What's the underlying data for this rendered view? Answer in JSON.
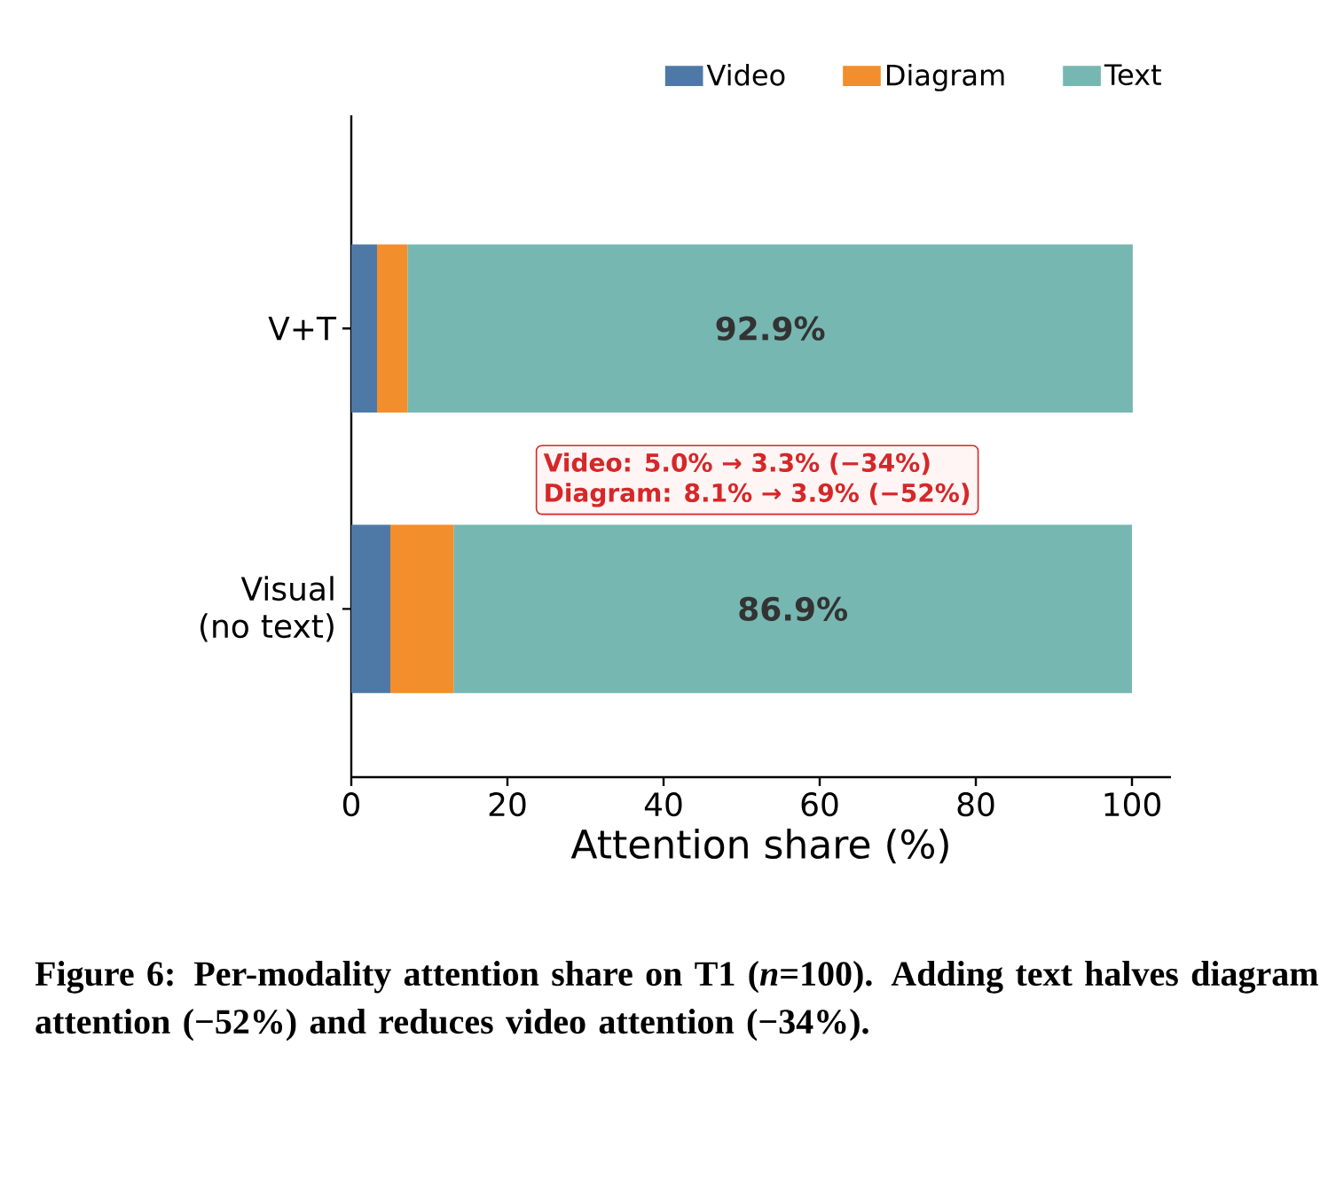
{
  "chart_data": {
    "type": "bar",
    "orientation": "horizontal",
    "stacked": true,
    "categories": [
      "V+T",
      "Visual (no text)"
    ],
    "series": [
      {
        "name": "Video",
        "color": "#4e79a7",
        "values": [
          3.3,
          5.0
        ]
      },
      {
        "name": "Diagram",
        "color": "#f28e2b",
        "values": [
          3.9,
          8.1
        ]
      },
      {
        "name": "Text",
        "color": "#76b7b2",
        "values": [
          92.9,
          86.9
        ],
        "value_labels": [
          "92.9%",
          "86.9%"
        ]
      }
    ],
    "xlabel": "Attention share (%)",
    "xlim": [
      0,
      105
    ],
    "xticks": [
      0,
      20,
      40,
      60,
      80,
      100
    ],
    "legend": "top",
    "annotations": [
      "Video:   5.0% → 3.3%  (−34%)",
      "Diagram: 8.1% → 3.9%  (−52%)",
      "Figure 6: Per-modality attention share on T1 (*n*=100). Adding text halves diagram attention (−52%) and reduces video attention (−34%)."
    ]
  }
}
